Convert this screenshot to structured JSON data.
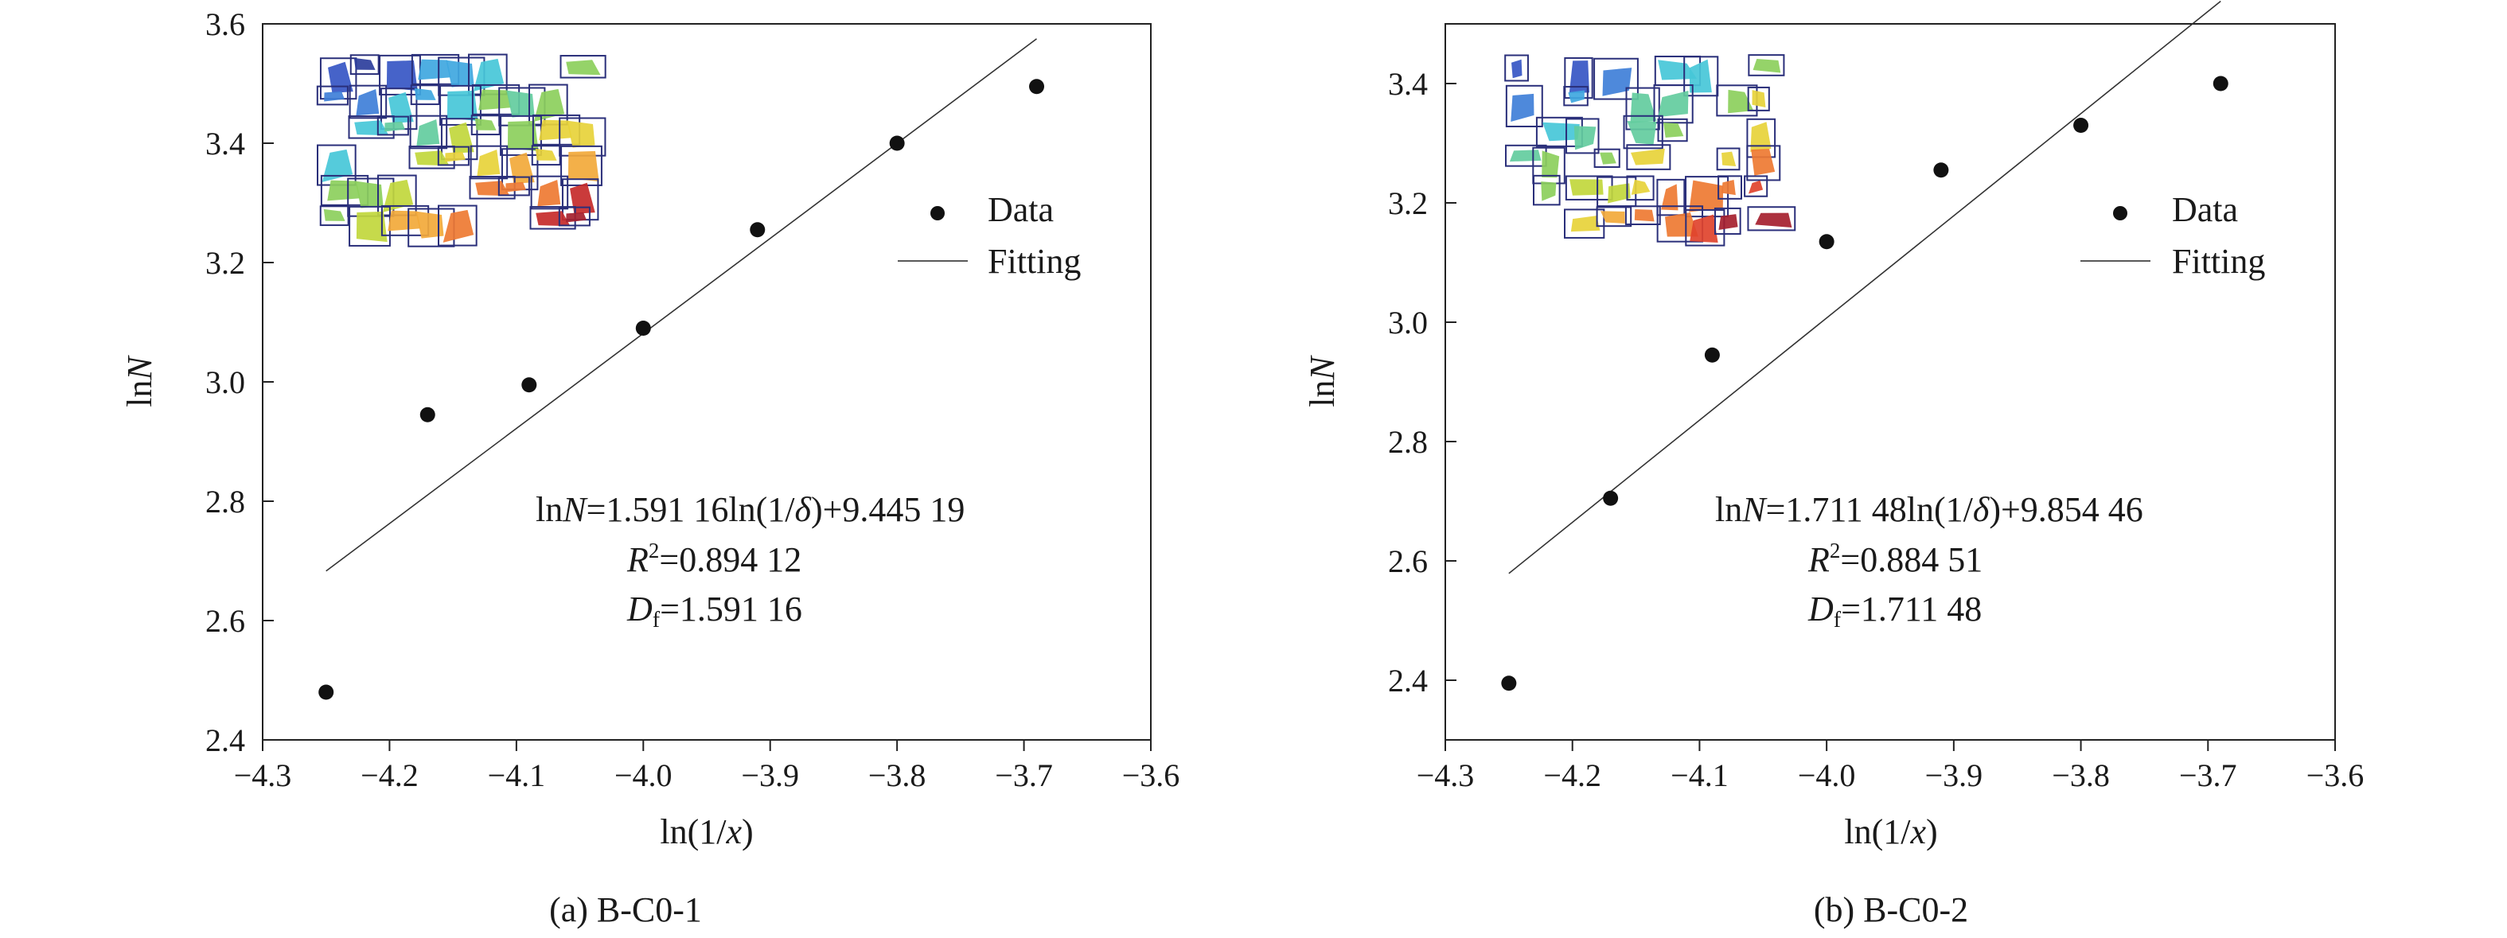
{
  "chart_data": [
    {
      "type": "scatter",
      "caption": "(a) B-C0-1",
      "xlabel": "ln(1/x)",
      "ylabel": "lnN",
      "xlim": [
        -4.3,
        -3.6
      ],
      "ylim": [
        2.4,
        3.6
      ],
      "x_ticks": [
        "−4.3",
        "−4.2",
        "−4.1",
        "−4.0",
        "−3.9",
        "−3.8",
        "−3.7",
        "−3.6"
      ],
      "y_ticks": [
        "2.4",
        "2.6",
        "2.8",
        "3.0",
        "3.2",
        "3.4",
        "3.6"
      ],
      "legend": {
        "data_label": "Data",
        "fit_label": "Fitting",
        "position": "right"
      },
      "series": [
        {
          "name": "Data",
          "kind": "points",
          "x": [
            -4.25,
            -4.17,
            -4.09,
            -4.0,
            -3.91,
            -3.8,
            -3.69
          ],
          "y": [
            2.48,
            2.945,
            2.995,
            3.09,
            3.255,
            3.4,
            3.495
          ]
        },
        {
          "name": "Fitting",
          "kind": "line",
          "x": [
            -4.25,
            -3.69
          ],
          "y": [
            2.683,
            3.575
          ]
        }
      ],
      "annotation": {
        "equation": "lnN=1.591 16ln(1/δ)+9.445 19",
        "r2": "R²=0.894 12",
        "df": "Df=1.591 16"
      },
      "inset": "colored fracture-block box-counting pattern",
      "grid": false
    },
    {
      "type": "scatter",
      "caption": "(b) B-C0-2",
      "xlabel": "ln(1/x)",
      "ylabel": "lnN",
      "xlim": [
        -4.3,
        -3.6
      ],
      "ylim": [
        2.3,
        3.5
      ],
      "x_ticks": [
        "−4.3",
        "−4.2",
        "−4.1",
        "−4.0",
        "−3.9",
        "−3.8",
        "−3.7",
        "−3.6"
      ],
      "y_ticks": [
        "2.4",
        "2.6",
        "2.8",
        "3.0",
        "3.2",
        "3.4"
      ],
      "legend": {
        "data_label": "Data",
        "fit_label": "Fitting",
        "position": "right"
      },
      "series": [
        {
          "name": "Data",
          "kind": "points",
          "x": [
            -4.25,
            -4.17,
            -4.09,
            -4.0,
            -3.91,
            -3.8,
            -3.69
          ],
          "y": [
            2.395,
            2.705,
            2.945,
            3.135,
            3.255,
            3.33,
            3.4
          ]
        },
        {
          "name": "Fitting",
          "kind": "line",
          "x": [
            -4.25,
            -3.69
          ],
          "y": [
            2.579,
            3.538
          ]
        }
      ],
      "annotation": {
        "equation": "lnN=1.711 48ln(1/δ)+9.854 46",
        "r2": "R²=0.884 51",
        "df": "Df=1.711 48"
      },
      "inset": "colored fracture-block box-counting pattern",
      "grid": false
    }
  ]
}
